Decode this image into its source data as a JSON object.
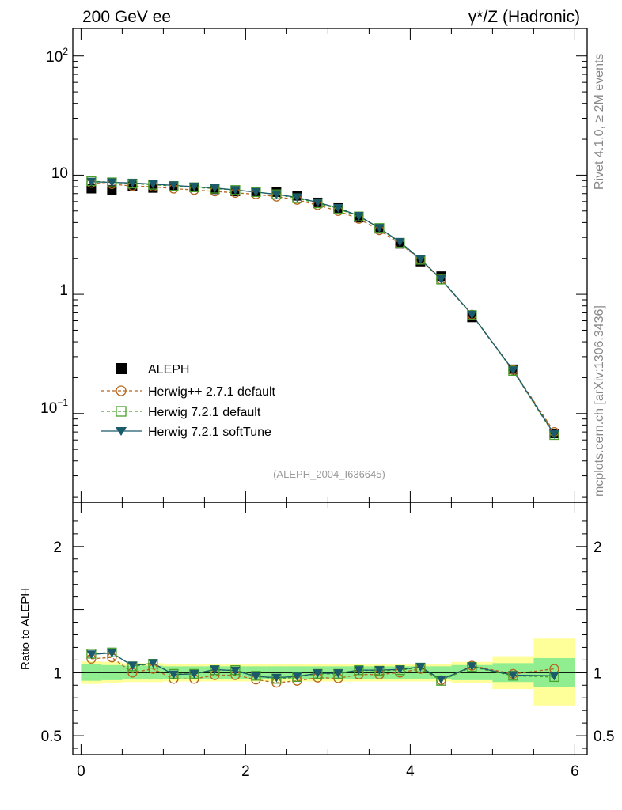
{
  "header": {
    "left": "200 GeV ee",
    "right": "γ*/Z (Hadronic)"
  },
  "side": {
    "rivet": "Rivet 4.1.0, ≥ 2M events",
    "site": "mcplots.cern.ch [arXiv:1306.3436]"
  },
  "colors": {
    "data": "#000000",
    "herwigpp": "#b5651d",
    "herwig_default": "#4aa02c",
    "herwig_soft": "#1b5a6a",
    "band_inner": "#90ee90",
    "band_outer": "#ffff99"
  },
  "chart_data": {
    "type": "line",
    "analysis_label": "(ALEPH_2004_I636645)",
    "ylabel_ratio": "Ratio to ALEPH",
    "xlim": [
      -0.1,
      6.15
    ],
    "ylim_main": [
      0.018,
      170
    ],
    "ylim_ratio": [
      0.35,
      2.35
    ],
    "main_y_ticks": [
      "10^2",
      "10",
      "1",
      "10^-1"
    ],
    "ratio_y_ticks": [
      "2",
      "1",
      "0.5"
    ],
    "ratio_y_tick_values": [
      2,
      1,
      0.5
    ],
    "x_ticks": [
      "0",
      "2",
      "4",
      "6"
    ],
    "x_tick_values": [
      0,
      2,
      4,
      6
    ],
    "x": [
      0.125,
      0.375,
      0.625,
      0.875,
      1.125,
      1.375,
      1.625,
      1.875,
      2.125,
      2.375,
      2.625,
      2.875,
      3.125,
      3.375,
      3.625,
      3.875,
      4.125,
      4.375,
      4.75,
      5.25,
      5.75
    ],
    "x_lo": [
      0.0,
      0.25,
      0.5,
      0.75,
      1.0,
      1.25,
      1.5,
      1.75,
      2.0,
      2.25,
      2.5,
      2.75,
      3.0,
      3.25,
      3.5,
      3.75,
      4.0,
      4.25,
      4.5,
      5.0,
      5.5
    ],
    "x_hi": [
      0.25,
      0.5,
      0.75,
      1.0,
      1.25,
      1.5,
      1.75,
      2.0,
      2.25,
      2.5,
      2.75,
      3.0,
      3.25,
      3.5,
      3.75,
      4.0,
      4.25,
      4.5,
      5.0,
      5.5,
      6.0
    ],
    "series": [
      {
        "name": "ALEPH",
        "key": "data",
        "values": [
          7.7,
          7.5,
          8.1,
          7.8,
          8.1,
          7.9,
          7.6,
          7.3,
          7.3,
          7.2,
          6.7,
          5.9,
          5.3,
          4.4,
          3.55,
          2.65,
          1.88,
          1.42,
          0.64,
          0.235,
          0.068
        ],
        "ratio": [
          1.0,
          1.0,
          1.0,
          1.0,
          1.0,
          1.0,
          1.0,
          1.0,
          1.0,
          1.0,
          1.0,
          1.0,
          1.0,
          1.0,
          1.0,
          1.0,
          1.0,
          1.0,
          1.0,
          1.0,
          1.0
        ]
      },
      {
        "name": "Herwig++ 2.7.1 default",
        "key": "herwigpp",
        "values": [
          8.6,
          8.4,
          8.1,
          8.0,
          7.7,
          7.5,
          7.3,
          7.1,
          6.9,
          6.6,
          6.2,
          5.6,
          5.0,
          4.3,
          3.45,
          2.65,
          1.95,
          1.33,
          0.675,
          0.232,
          0.07
        ],
        "ratio": [
          1.11,
          1.12,
          1.0,
          1.03,
          0.95,
          0.95,
          0.98,
          0.98,
          0.945,
          0.92,
          0.935,
          0.96,
          0.955,
          0.985,
          0.985,
          1.0,
          1.03,
          0.94,
          1.055,
          0.99,
          1.03
        ]
      },
      {
        "name": "Herwig 7.2.1 default",
        "key": "herwig_default",
        "values": [
          8.9,
          8.7,
          8.5,
          8.3,
          8.1,
          7.9,
          7.7,
          7.5,
          7.2,
          6.9,
          6.4,
          5.8,
          5.2,
          4.5,
          3.6,
          2.7,
          1.95,
          1.33,
          0.67,
          0.228,
          0.066
        ],
        "ratio": [
          1.15,
          1.16,
          1.05,
          1.07,
          0.99,
          0.99,
          1.02,
          1.02,
          0.975,
          0.95,
          0.965,
          0.99,
          0.99,
          1.02,
          1.015,
          1.02,
          1.04,
          0.935,
          1.045,
          0.975,
          0.965
        ]
      },
      {
        "name": "Herwig 7.2.1 softTune",
        "key": "herwig_soft",
        "values": [
          8.8,
          8.7,
          8.6,
          8.4,
          8.2,
          8.0,
          7.8,
          7.5,
          7.2,
          6.9,
          6.5,
          5.9,
          5.3,
          4.55,
          3.6,
          2.75,
          1.97,
          1.34,
          0.675,
          0.23,
          0.067
        ],
        "ratio": [
          1.145,
          1.155,
          1.055,
          1.075,
          0.985,
          0.99,
          1.025,
          1.015,
          0.97,
          0.96,
          0.97,
          0.995,
          0.995,
          1.02,
          1.02,
          1.025,
          1.045,
          0.945,
          1.05,
          0.98,
          0.975
        ]
      }
    ],
    "band_inner": [
      [
        0.935,
        1.065
      ],
      [
        0.94,
        1.06
      ],
      [
        0.945,
        1.055
      ],
      [
        0.945,
        1.055
      ],
      [
        0.95,
        1.05
      ],
      [
        0.95,
        1.05
      ],
      [
        0.95,
        1.05
      ],
      [
        0.95,
        1.05
      ],
      [
        0.95,
        1.05
      ],
      [
        0.95,
        1.05
      ],
      [
        0.95,
        1.05
      ],
      [
        0.95,
        1.05
      ],
      [
        0.95,
        1.05
      ],
      [
        0.95,
        1.05
      ],
      [
        0.95,
        1.05
      ],
      [
        0.95,
        1.05
      ],
      [
        0.95,
        1.05
      ],
      [
        0.95,
        1.05
      ],
      [
        0.94,
        1.06
      ],
      [
        0.925,
        1.075
      ],
      [
        0.885,
        1.115
      ]
    ],
    "band_outer": [
      [
        0.91,
        1.09
      ],
      [
        0.915,
        1.085
      ],
      [
        0.925,
        1.075
      ],
      [
        0.925,
        1.075
      ],
      [
        0.93,
        1.07
      ],
      [
        0.93,
        1.07
      ],
      [
        0.93,
        1.07
      ],
      [
        0.93,
        1.07
      ],
      [
        0.93,
        1.07
      ],
      [
        0.93,
        1.07
      ],
      [
        0.93,
        1.07
      ],
      [
        0.93,
        1.07
      ],
      [
        0.93,
        1.07
      ],
      [
        0.93,
        1.07
      ],
      [
        0.93,
        1.07
      ],
      [
        0.93,
        1.07
      ],
      [
        0.93,
        1.07
      ],
      [
        0.93,
        1.07
      ],
      [
        0.915,
        1.085
      ],
      [
        0.87,
        1.13
      ],
      [
        0.74,
        1.27
      ]
    ]
  }
}
